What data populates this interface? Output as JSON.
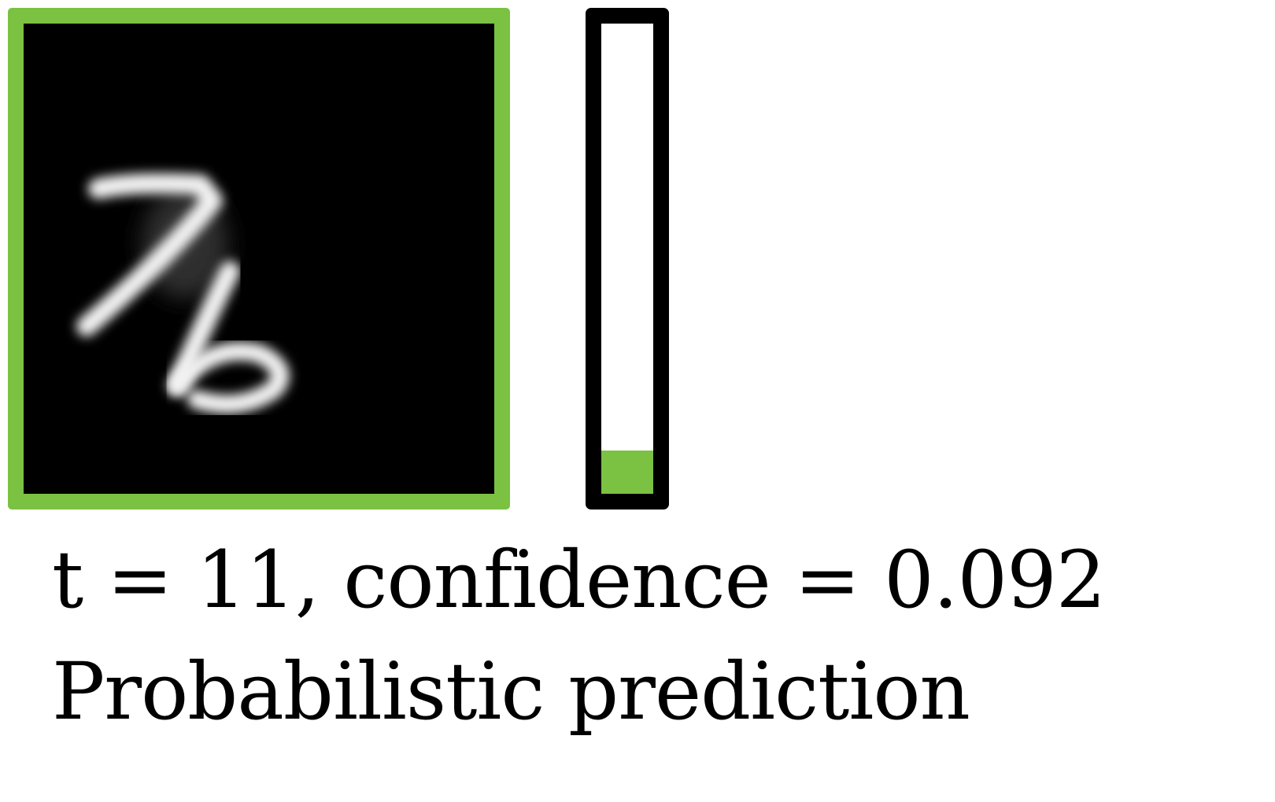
{
  "colors": {
    "frame": "#7bc142",
    "bar_fill": "#7bc142",
    "bar_border": "#000000",
    "image_background": "#000000"
  },
  "image": {
    "icon": "handwritten-digits-image"
  },
  "confidence_bar": {
    "value": 0.092
  },
  "caption": {
    "line1": "t = 11, confidence = 0.092",
    "line2": "Probabilistic prediction"
  }
}
